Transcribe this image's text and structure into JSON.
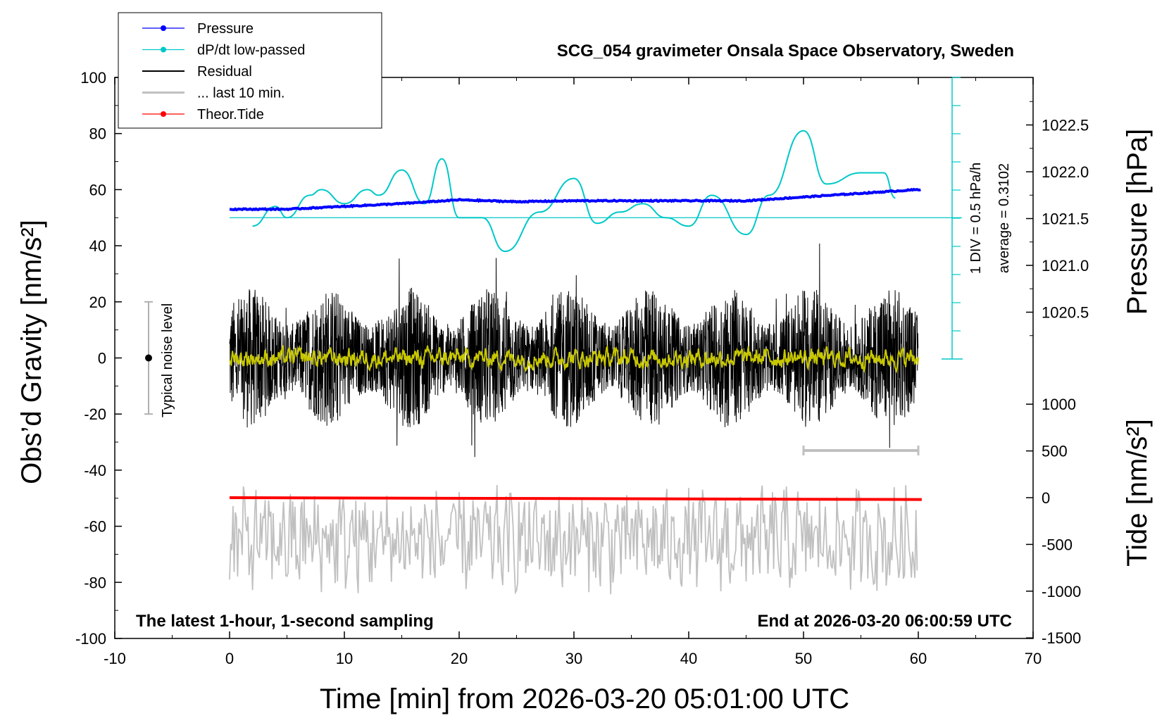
{
  "chart_data": {
    "type": "line",
    "title": "SCG_054 gravimeter Onsala Space Observatory, Sweden",
    "xlabel": "Time [min] from 2026-03-20 05:01:00 UTC",
    "ylabel_left": "Obs’d Gravity [nm/s²]",
    "ylabel_right_top": "Pressure [hPa]",
    "ylabel_right_bottom": "Tide [nm/s²]",
    "note_left": "The latest 1-hour, 1-second sampling",
    "note_right": "End at 2026-03-20 06:00:59 UTC",
    "noise_label": "Typical noise level",
    "dpdt_div_label": "1 DIV = 0.5 hPa/h",
    "dpdt_avg_label": "average = 0.3102",
    "xlim": [
      -10,
      70
    ],
    "ylim_left": [
      -100,
      100
    ],
    "x_ticks": [
      "-10",
      "0",
      "10",
      "20",
      "30",
      "40",
      "50",
      "60",
      "70"
    ],
    "y_ticks_left": [
      "100",
      "80",
      "60",
      "40",
      "20",
      "0",
      "-20",
      "-40",
      "-60",
      "-80",
      "-100"
    ],
    "pressure_ticks": [
      "1022.5",
      "1022.0",
      "1021.5",
      "1021.0",
      "1020.5"
    ],
    "tide_ticks": [
      "1000",
      "500",
      "0",
      "-500",
      "-1000",
      "-1500"
    ],
    "legend": [
      "Pressure",
      "dP/dt low-passed",
      "Residual",
      "... last 10 min.",
      "Theor.Tide"
    ],
    "colors": {
      "pressure": "#0000ff",
      "dpdt": "#00c8c8",
      "residual": "#000000",
      "last10": "#c0c0c0",
      "tide": "#ff0000",
      "smooth": "#c8c800"
    },
    "series": [
      {
        "name": "Pressure",
        "unit": "hPa",
        "x": [
          0,
          5,
          10,
          15,
          20,
          25,
          30,
          35,
          40,
          45,
          50,
          55,
          60
        ],
        "values": [
          1021.6,
          1021.6,
          1021.63,
          1021.66,
          1021.7,
          1021.68,
          1021.69,
          1021.69,
          1021.69,
          1021.69,
          1021.73,
          1021.77,
          1021.81
        ]
      },
      {
        "name": "dP/dt low-passed",
        "unit": "gravity-axis position",
        "x": [
          2,
          4,
          5,
          7,
          8,
          10,
          12,
          13,
          15,
          17,
          18.5,
          20,
          22,
          24,
          27,
          30,
          32,
          34,
          36,
          38,
          40,
          42,
          45,
          47,
          50,
          52,
          55,
          57,
          58
        ],
        "values": [
          47,
          54,
          50,
          58,
          60,
          55,
          60,
          58,
          67,
          55,
          71,
          50,
          50,
          38,
          52,
          64,
          48,
          52,
          55,
          50,
          47,
          58,
          44,
          58,
          81,
          62,
          66,
          66,
          57
        ]
      },
      {
        "name": "Residual",
        "unit": "nm/s²",
        "x_range": [
          0,
          60
        ],
        "approx_amplitude": 25
      },
      {
        "name": "... last 10 min.",
        "unit": "nm/s²",
        "x_range": [
          50,
          60
        ]
      },
      {
        "name": "Theor.Tide",
        "unit": "nm/s²",
        "x": [
          0,
          60
        ],
        "values": [
          0,
          -20
        ]
      }
    ]
  }
}
